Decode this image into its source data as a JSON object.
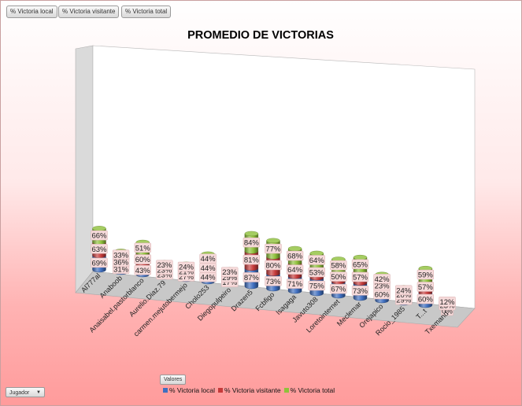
{
  "filters": [
    "% Victoria local",
    "% Victoria visitante",
    "% Victoria total"
  ],
  "field_button_label": "Valores",
  "axis_field": {
    "label": "Jugador",
    "icon": "chevron-down-icon"
  },
  "colors": {
    "local": "#3f6fc0",
    "visitante": "#c63a3a",
    "total": "#8fc13b"
  },
  "chart_data": {
    "type": "bar",
    "title": "PROMEDIO DE VICTORIAS",
    "stacked": true,
    "three_d": true,
    "categories": [
      "Al777al",
      "Anaboob",
      "Anaisabel.pastorblanco",
      "Aurelio.Diaz.79",
      "carmen.mejutobermejo",
      "Cholo253",
      "Diegopulpeiro",
      "Drazen5",
      "Fcbfigo",
      "Isagaga",
      "Javuto308",
      "Loretointernet",
      "Meclemar",
      "Orejapico",
      "Rocio_1985",
      "T...t",
      "Txemand"
    ],
    "series": [
      {
        "name": "% Victoria local",
        "values": [
          69,
          31,
          43,
          23,
          27,
          44,
          17,
          87,
          73,
          71,
          75,
          67,
          73,
          60,
          29,
          60,
          0
        ],
        "labels": [
          "69%",
          "31%",
          "43%",
          "23%",
          "27%",
          "44%",
          "17%",
          "87%",
          "73%",
          "71%",
          "75%",
          "67%",
          "73%",
          "60%",
          "29%",
          "60%",
          "0%"
        ]
      },
      {
        "name": "% Victoria visitante",
        "values": [
          63,
          36,
          60,
          23,
          21,
          44,
          29,
          81,
          80,
          64,
          53,
          50,
          57,
          23,
          20,
          57,
          23
        ],
        "labels": [
          "63%",
          "36%",
          "60%",
          "23%",
          "21%",
          "44%",
          "29%",
          "81%",
          "80%",
          "64%",
          "53%",
          "50%",
          "57%",
          "23%",
          "20%",
          "57%",
          "23%"
        ]
      },
      {
        "name": "% Victoria total",
        "values": [
          66,
          33,
          51,
          23,
          24,
          44,
          23,
          84,
          77,
          68,
          64,
          58,
          65,
          42,
          24,
          59,
          12
        ],
        "labels": [
          "66%",
          "33%",
          "51%",
          "23%",
          "24%",
          "44%",
          "23%",
          "84%",
          "77%",
          "68%",
          "64%",
          "58%",
          "65%",
          "42%",
          "24%",
          "59%",
          "12%"
        ]
      }
    ],
    "legend_position": "bottom",
    "grid": false
  }
}
